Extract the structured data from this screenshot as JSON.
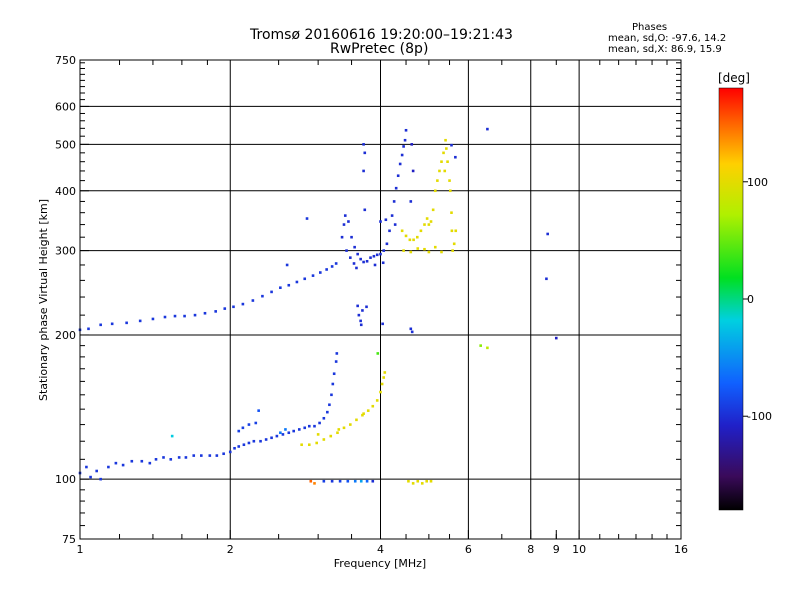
{
  "header": {
    "title_line1": "Tromsø 20160616 19:20:00–19:21:43",
    "title_line2": "RwPretec (8p)"
  },
  "stats": {
    "heading": "Phases",
    "line_o": "mean, sd,O: -97.6, 14.2",
    "line_x": "mean, sd,X:  86.9, 15.9"
  },
  "colorbar": {
    "label": "[deg]",
    "ticks": [
      {
        "value": 100,
        "label": "100"
      },
      {
        "value": 0,
        "label": "0"
      },
      {
        "value": -100,
        "label": "-100"
      }
    ],
    "range": [
      -180,
      180
    ]
  },
  "chart_data": {
    "type": "scatter",
    "title": "Tromsø 20160616 19:20:00–19:21:43  RwPretec (8p)",
    "xlabel": "Frequency [MHz]",
    "ylabel": "Stationary phase Virtual Height [km]",
    "xscale": "log",
    "yscale": "log",
    "xlim": [
      1,
      16
    ],
    "ylim": [
      75,
      750
    ],
    "x_ticks": [
      1,
      2,
      4,
      6,
      8,
      9,
      10,
      16
    ],
    "x_tick_labels": [
      "1",
      "2",
      "4",
      "6",
      "8",
      "9",
      "10",
      "16"
    ],
    "y_ticks": [
      75,
      100,
      200,
      300,
      400,
      500,
      600,
      750
    ],
    "y_tick_labels": [
      "75",
      "100",
      "200",
      "300",
      "400",
      "500",
      "600",
      "750"
    ],
    "x_gridlines": [
      2,
      4,
      6,
      8,
      10
    ],
    "y_gridlines": [
      100,
      200,
      300,
      400,
      500,
      600
    ],
    "series": [
      {
        "points": [
          [
            1.0,
            103,
            -95
          ],
          [
            1.03,
            106,
            -95
          ],
          [
            1.05,
            101,
            -95
          ],
          [
            1.08,
            104,
            -95
          ],
          [
            1.1,
            100,
            -95
          ],
          [
            1.14,
            106,
            -95
          ],
          [
            1.18,
            108,
            -95
          ],
          [
            1.22,
            107,
            -95
          ],
          [
            1.27,
            109,
            -95
          ],
          [
            1.33,
            109,
            -95
          ],
          [
            1.38,
            108,
            -95
          ],
          [
            1.42,
            110,
            -95
          ],
          [
            1.47,
            111,
            -95
          ],
          [
            1.52,
            110,
            -95
          ],
          [
            1.58,
            111,
            -95
          ],
          [
            1.63,
            111,
            -95
          ],
          [
            1.69,
            112,
            -95
          ],
          [
            1.75,
            112,
            -95
          ],
          [
            1.82,
            112,
            -95
          ],
          [
            1.88,
            112,
            -95
          ],
          [
            1.94,
            113,
            -95
          ],
          [
            2.0,
            114,
            -95
          ],
          [
            2.04,
            116,
            -95
          ],
          [
            2.08,
            117,
            -95
          ],
          [
            2.13,
            118,
            -95
          ],
          [
            2.18,
            119,
            -95
          ],
          [
            2.23,
            120,
            -95
          ],
          [
            2.3,
            120,
            -95
          ],
          [
            2.36,
            121,
            -95
          ],
          [
            2.42,
            122,
            -95
          ],
          [
            2.48,
            123,
            -95
          ],
          [
            2.55,
            124,
            -95
          ],
          [
            2.62,
            125,
            -95
          ],
          [
            2.68,
            126,
            -95
          ],
          [
            2.75,
            127,
            -95
          ],
          [
            2.82,
            128,
            -95
          ],
          [
            2.88,
            129,
            -95
          ],
          [
            2.95,
            129,
            -95
          ],
          [
            3.02,
            131,
            -95
          ],
          [
            3.08,
            134,
            -95
          ],
          [
            3.13,
            138,
            -95
          ],
          [
            3.16,
            143,
            -95
          ],
          [
            3.19,
            150,
            -95
          ],
          [
            3.21,
            158,
            -95
          ],
          [
            3.23,
            166,
            -95
          ],
          [
            3.26,
            176,
            -95
          ],
          [
            3.27,
            183,
            -95
          ]
        ]
      },
      {
        "points": [
          [
            2.08,
            126,
            -90
          ],
          [
            2.12,
            128,
            -90
          ],
          [
            2.18,
            130,
            -90
          ],
          [
            2.25,
            131,
            -90
          ],
          [
            2.52,
            125,
            -60
          ],
          [
            2.58,
            127,
            -60
          ],
          [
            2.28,
            139,
            -80
          ],
          [
            1.53,
            123,
            -20
          ]
        ]
      },
      {
        "points": [
          [
            1.0,
            205,
            -95
          ],
          [
            1.04,
            206,
            -95
          ],
          [
            1.1,
            210,
            -95
          ],
          [
            1.16,
            211,
            -95
          ],
          [
            1.24,
            212,
            -95
          ],
          [
            1.32,
            214,
            -95
          ],
          [
            1.4,
            216,
            -95
          ],
          [
            1.48,
            218,
            -95
          ],
          [
            1.55,
            219,
            -95
          ],
          [
            1.62,
            219,
            -95
          ],
          [
            1.7,
            220,
            -95
          ],
          [
            1.78,
            222,
            -95
          ],
          [
            1.87,
            224,
            -95
          ],
          [
            1.95,
            227,
            -95
          ],
          [
            2.03,
            229,
            -95
          ],
          [
            2.12,
            232,
            -95
          ],
          [
            2.22,
            236,
            -95
          ],
          [
            2.32,
            241,
            -95
          ],
          [
            2.42,
            246,
            -95
          ],
          [
            2.52,
            251,
            -95
          ],
          [
            2.62,
            254,
            -95
          ],
          [
            2.72,
            258,
            -95
          ],
          [
            2.82,
            262,
            -95
          ],
          [
            2.93,
            266,
            -95
          ],
          [
            3.03,
            270,
            -95
          ],
          [
            3.12,
            274,
            -95
          ],
          [
            3.2,
            278,
            -95
          ],
          [
            3.26,
            282,
            -95
          ],
          [
            2.6,
            280,
            -95
          ],
          [
            2.85,
            350,
            -95
          ]
        ]
      },
      {
        "points": [
          [
            3.35,
            320,
            -100
          ],
          [
            3.38,
            340,
            -100
          ],
          [
            3.4,
            355,
            -100
          ],
          [
            3.45,
            345,
            -100
          ],
          [
            3.5,
            320,
            -100
          ],
          [
            3.55,
            305,
            -100
          ],
          [
            3.6,
            295,
            -100
          ],
          [
            3.65,
            288,
            -100
          ],
          [
            3.7,
            284,
            -100
          ],
          [
            3.76,
            285,
            -100
          ],
          [
            3.82,
            290,
            -100
          ],
          [
            3.88,
            292,
            -100
          ],
          [
            3.94,
            294,
            -100
          ],
          [
            4.0,
            295,
            -100
          ],
          [
            4.06,
            300,
            -100
          ],
          [
            4.12,
            310,
            -100
          ],
          [
            4.17,
            330,
            -100
          ],
          [
            4.22,
            355,
            -100
          ],
          [
            4.26,
            380,
            -100
          ],
          [
            4.3,
            405,
            -100
          ],
          [
            4.34,
            430,
            -100
          ],
          [
            4.38,
            455,
            -100
          ],
          [
            4.42,
            475,
            -100
          ],
          [
            4.45,
            495,
            -100
          ],
          [
            3.42,
            300,
            -100
          ],
          [
            3.48,
            290,
            -100
          ],
          [
            3.54,
            282,
            -100
          ],
          [
            3.58,
            276,
            -100
          ],
          [
            3.7,
            440,
            -100
          ],
          [
            3.72,
            480,
            -100
          ],
          [
            3.7,
            500,
            -100
          ],
          [
            3.72,
            365,
            -100
          ],
          [
            4.0,
            345,
            -100
          ],
          [
            4.1,
            348,
            -100
          ],
          [
            4.28,
            340,
            -100
          ],
          [
            3.9,
            280,
            -100
          ],
          [
            4.05,
            283,
            -100
          ],
          [
            4.6,
            380,
            -100
          ],
          [
            4.65,
            440,
            -110
          ],
          [
            4.62,
            500,
            -110
          ],
          [
            4.5,
            535,
            -100
          ],
          [
            4.48,
            510,
            -100
          ]
        ]
      },
      {
        "points": [
          [
            3.6,
            230,
            -100
          ],
          [
            3.62,
            220,
            -100
          ],
          [
            3.65,
            214,
            -100
          ],
          [
            3.66,
            210,
            -100
          ],
          [
            3.68,
            225,
            -100
          ],
          [
            3.75,
            229,
            -100
          ],
          [
            4.04,
            211,
            -100
          ],
          [
            4.6,
            206,
            -100
          ],
          [
            4.63,
            203,
            -100
          ],
          [
            6.55,
            538,
            -100
          ],
          [
            8.65,
            325,
            -100
          ],
          [
            8.6,
            262,
            -100
          ],
          [
            9.0,
            197,
            -110
          ],
          [
            5.55,
            498,
            -100
          ],
          [
            5.65,
            470,
            -100
          ]
        ]
      },
      {
        "points": [
          [
            2.78,
            118,
            100
          ],
          [
            2.88,
            118,
            100
          ],
          [
            2.98,
            119,
            100
          ],
          [
            3.08,
            121,
            100
          ],
          [
            3.18,
            123,
            100
          ],
          [
            3.28,
            125,
            100
          ],
          [
            3.38,
            128,
            100
          ],
          [
            3.48,
            130,
            100
          ],
          [
            3.58,
            133,
            100
          ],
          [
            3.68,
            136,
            100
          ],
          [
            3.78,
            139,
            100
          ],
          [
            3.86,
            142,
            100
          ],
          [
            3.94,
            146,
            100
          ],
          [
            4.0,
            152,
            100
          ],
          [
            4.03,
            158,
            100
          ],
          [
            4.06,
            163,
            100
          ],
          [
            4.08,
            167,
            100
          ],
          [
            3.0,
            124,
            100
          ],
          [
            3.3,
            127,
            100
          ],
          [
            3.7,
            137,
            100
          ]
        ]
      },
      {
        "points": [
          [
            4.42,
            330,
            100
          ],
          [
            4.5,
            322,
            100
          ],
          [
            4.58,
            316,
            100
          ],
          [
            4.66,
            316,
            100
          ],
          [
            4.74,
            320,
            100
          ],
          [
            4.82,
            330,
            100
          ],
          [
            4.9,
            340,
            100
          ],
          [
            4.96,
            350,
            100
          ],
          [
            5.0,
            340,
            100
          ],
          [
            5.05,
            345,
            100
          ],
          [
            5.1,
            365,
            100
          ],
          [
            5.15,
            400,
            100
          ],
          [
            5.2,
            420,
            100
          ],
          [
            5.25,
            440,
            100
          ],
          [
            5.3,
            460,
            100
          ],
          [
            5.35,
            480,
            100
          ],
          [
            5.4,
            510,
            100
          ],
          [
            5.42,
            490,
            100
          ],
          [
            5.38,
            440,
            100
          ],
          [
            5.45,
            460,
            100
          ],
          [
            5.5,
            420,
            100
          ],
          [
            5.52,
            400,
            100
          ],
          [
            5.55,
            360,
            100
          ],
          [
            5.56,
            330,
            100
          ],
          [
            5.58,
            300,
            100
          ],
          [
            5.62,
            310,
            100
          ],
          [
            5.66,
            330,
            100
          ],
          [
            4.45,
            300,
            100
          ],
          [
            4.6,
            298,
            100
          ],
          [
            4.75,
            303,
            100
          ],
          [
            4.9,
            302,
            100
          ],
          [
            5.0,
            298,
            100
          ],
          [
            5.15,
            305,
            100
          ],
          [
            5.3,
            298,
            100
          ]
        ]
      },
      {
        "points": [
          [
            6.35,
            190,
            60
          ],
          [
            6.55,
            188,
            80
          ],
          [
            3.95,
            183,
            40
          ]
        ]
      },
      {
        "points": [
          [
            3.08,
            99,
            -90
          ],
          [
            3.2,
            99,
            -95
          ],
          [
            3.32,
            99,
            -90
          ],
          [
            3.44,
            99,
            -80
          ],
          [
            3.56,
            99,
            -60
          ],
          [
            3.66,
            99,
            -40
          ],
          [
            3.76,
            99,
            -70
          ],
          [
            3.86,
            99,
            -100
          ],
          [
            2.9,
            99,
            150
          ],
          [
            2.95,
            98,
            140
          ]
        ]
      },
      {
        "points": [
          [
            4.55,
            99,
            100
          ],
          [
            4.65,
            98,
            100
          ],
          [
            4.75,
            99,
            100
          ],
          [
            4.85,
            98,
            100
          ],
          [
            4.95,
            99,
            100
          ],
          [
            5.05,
            99,
            100
          ]
        ]
      }
    ]
  }
}
